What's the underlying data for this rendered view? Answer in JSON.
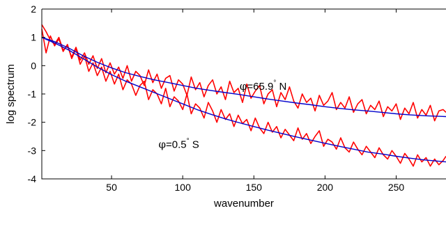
{
  "chart_data": {
    "type": "line",
    "xlabel": "wavenumber",
    "ylabel": "log spectrum",
    "xlim": [
      1,
      285
    ],
    "ylim": [
      -4,
      2
    ],
    "xticks": [
      50,
      100,
      150,
      200,
      250
    ],
    "yticks": [
      -4,
      -3,
      -2,
      -1,
      0,
      1,
      2
    ],
    "grid": false,
    "legend": "none",
    "colors": {
      "noisy": "#ff0000",
      "smooth": "#0000cc"
    },
    "annotations": [
      {
        "symbol": "φ",
        "text": "=65.9",
        "degree": "°",
        "suffix": " N",
        "x": 140,
        "y": -0.85
      },
      {
        "symbol": "φ",
        "text": "=0.5",
        "degree": "°",
        "suffix": " S",
        "x": 83,
        "y": -2.9
      }
    ],
    "series": [
      {
        "role": "smooth-north",
        "x": [
          1,
          10,
          20,
          30,
          40,
          50,
          60,
          70,
          80,
          90,
          100,
          110,
          120,
          130,
          140,
          150,
          160,
          170,
          180,
          190,
          200,
          210,
          220,
          230,
          240,
          250,
          260,
          270,
          285
        ],
        "y": [
          1.0,
          0.85,
          0.62,
          0.35,
          0.12,
          -0.08,
          -0.25,
          -0.38,
          -0.5,
          -0.6,
          -0.7,
          -0.8,
          -0.88,
          -0.95,
          -1.02,
          -1.1,
          -1.18,
          -1.25,
          -1.32,
          -1.38,
          -1.45,
          -1.51,
          -1.56,
          -1.6,
          -1.65,
          -1.7,
          -1.74,
          -1.77,
          -1.8
        ]
      },
      {
        "role": "smooth-south",
        "x": [
          1,
          10,
          20,
          30,
          40,
          50,
          60,
          70,
          80,
          90,
          100,
          110,
          120,
          130,
          140,
          150,
          160,
          170,
          180,
          190,
          200,
          210,
          220,
          230,
          240,
          250,
          260,
          270,
          285
        ],
        "y": [
          1.0,
          0.8,
          0.55,
          0.25,
          -0.05,
          -0.32,
          -0.55,
          -0.75,
          -0.95,
          -1.15,
          -1.35,
          -1.55,
          -1.72,
          -1.88,
          -2.02,
          -2.15,
          -2.28,
          -2.4,
          -2.52,
          -2.63,
          -2.74,
          -2.85,
          -2.95,
          -3.05,
          -3.12,
          -3.2,
          -3.27,
          -3.33,
          -3.4
        ]
      },
      {
        "role": "noisy-north",
        "x": [
          1,
          4,
          7,
          10,
          13,
          16,
          19,
          22,
          25,
          28,
          31,
          34,
          37,
          40,
          43,
          46,
          49,
          52,
          55,
          58,
          61,
          64,
          67,
          70,
          73,
          76,
          79,
          82,
          85,
          88,
          91,
          94,
          97,
          100,
          103,
          106,
          109,
          112,
          115,
          118,
          121,
          124,
          127,
          130,
          133,
          136,
          139,
          142,
          145,
          148,
          151,
          154,
          157,
          160,
          163,
          166,
          169,
          172,
          175,
          178,
          181,
          184,
          187,
          190,
          193,
          196,
          199,
          202,
          205,
          208,
          211,
          214,
          217,
          220,
          223,
          226,
          229,
          232,
          235,
          238,
          241,
          244,
          247,
          250,
          253,
          256,
          259,
          262,
          265,
          268,
          271,
          274,
          277,
          280,
          283,
          285
        ],
        "y": [
          1.45,
          1.2,
          0.9,
          0.75,
          1.0,
          0.55,
          0.7,
          0.3,
          0.65,
          0.2,
          0.45,
          0.05,
          0.35,
          -0.1,
          0.25,
          -0.25,
          0.1,
          -0.3,
          -0.05,
          -0.45,
          0.0,
          -0.55,
          -0.2,
          -0.35,
          -0.7,
          -0.15,
          -0.6,
          -0.3,
          -0.8,
          -0.45,
          -0.35,
          -0.9,
          -0.5,
          -0.65,
          -1.05,
          -0.4,
          -0.85,
          -0.6,
          -1.1,
          -0.7,
          -0.5,
          -1.0,
          -0.75,
          -1.2,
          -0.55,
          -0.95,
          -0.8,
          -1.3,
          -0.65,
          -1.15,
          -0.9,
          -0.7,
          -1.35,
          -1.0,
          -0.85,
          -1.45,
          -0.95,
          -1.2,
          -0.75,
          -1.25,
          -1.5,
          -1.0,
          -1.3,
          -1.15,
          -1.6,
          -1.05,
          -1.4,
          -1.25,
          -0.95,
          -1.55,
          -1.3,
          -1.5,
          -1.1,
          -1.65,
          -1.35,
          -1.2,
          -1.7,
          -1.4,
          -1.55,
          -1.25,
          -1.8,
          -1.45,
          -1.6,
          -1.35,
          -1.9,
          -1.5,
          -1.7,
          -1.3,
          -1.85,
          -1.55,
          -1.75,
          -1.4,
          -1.95,
          -1.6,
          -1.55,
          -1.65
        ]
      },
      {
        "role": "noisy-south",
        "x": [
          1,
          4,
          7,
          10,
          13,
          16,
          19,
          22,
          25,
          28,
          31,
          34,
          37,
          40,
          43,
          46,
          49,
          52,
          55,
          58,
          61,
          64,
          67,
          70,
          73,
          76,
          79,
          82,
          85,
          88,
          91,
          94,
          97,
          100,
          103,
          106,
          109,
          112,
          115,
          118,
          121,
          124,
          127,
          130,
          133,
          136,
          139,
          142,
          145,
          148,
          151,
          154,
          157,
          160,
          163,
          166,
          169,
          172,
          175,
          178,
          181,
          184,
          187,
          190,
          193,
          196,
          199,
          202,
          205,
          208,
          211,
          214,
          217,
          220,
          223,
          226,
          229,
          232,
          235,
          238,
          241,
          244,
          247,
          250,
          253,
          256,
          259,
          262,
          265,
          268,
          271,
          274,
          277,
          280,
          283,
          285
        ],
        "y": [
          1.3,
          0.45,
          1.05,
          0.7,
          0.95,
          0.5,
          0.75,
          0.25,
          0.6,
          0.05,
          0.35,
          -0.2,
          0.1,
          -0.35,
          -0.05,
          -0.55,
          -0.2,
          -0.65,
          -0.3,
          -0.85,
          -0.5,
          -0.65,
          -1.05,
          -0.7,
          -0.55,
          -1.2,
          -0.85,
          -1.0,
          -1.35,
          -0.8,
          -1.45,
          -1.1,
          -1.25,
          -1.55,
          -1.0,
          -1.7,
          -1.35,
          -1.5,
          -1.85,
          -1.3,
          -1.6,
          -2.0,
          -1.55,
          -1.9,
          -1.7,
          -2.15,
          -1.75,
          -2.05,
          -1.9,
          -2.3,
          -1.85,
          -2.2,
          -2.4,
          -2.0,
          -2.35,
          -2.15,
          -2.55,
          -2.25,
          -2.45,
          -2.65,
          -2.2,
          -2.6,
          -2.4,
          -2.75,
          -2.5,
          -2.3,
          -2.85,
          -2.6,
          -2.7,
          -2.95,
          -2.55,
          -2.9,
          -3.05,
          -2.7,
          -2.95,
          -3.15,
          -2.85,
          -3.05,
          -3.25,
          -2.9,
          -3.15,
          -3.3,
          -3.0,
          -3.2,
          -3.45,
          -3.1,
          -3.3,
          -3.55,
          -3.15,
          -3.4,
          -3.25,
          -3.55,
          -3.3,
          -3.5,
          -3.35,
          -3.2
        ]
      }
    ]
  }
}
